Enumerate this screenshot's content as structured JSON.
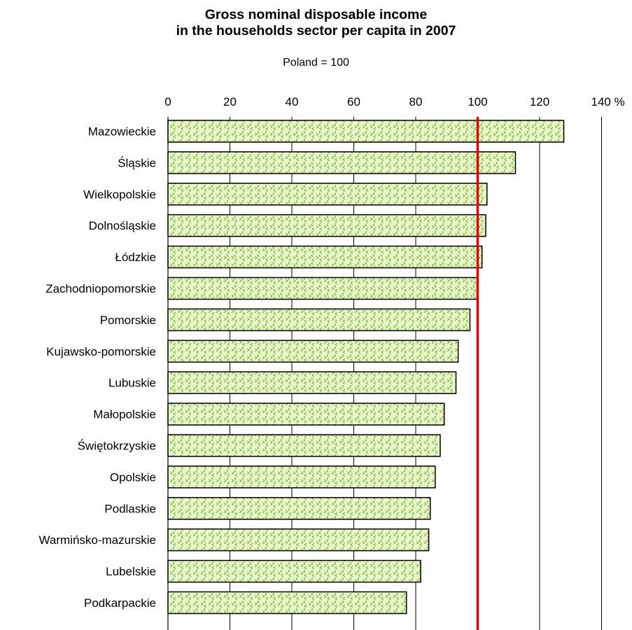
{
  "chart_data": {
    "type": "bar",
    "orientation": "horizontal",
    "title_line1": "Gross nominal disposable income",
    "title_line2": "in the households sector per capita in 2007",
    "subtitle": "Poland = 100",
    "xlim": [
      0,
      140
    ],
    "x_ticks": [
      "0",
      "20",
      "40",
      "60",
      "80",
      "100",
      "120",
      "140 %"
    ],
    "reference_line": {
      "value": 100,
      "color": "#e00000"
    },
    "grid": "vertical",
    "bar_fill": "#e9f7c8",
    "bar_pattern_color": "#72a83a",
    "categories": [
      "Mazowieckie",
      "Śląskie",
      "Wielkopolskie",
      "Dolnośląskie",
      "Łódzkie",
      "Zachodniopomorskie",
      "Pomorskie",
      "Kujawsko-pomorskie",
      "Lubuskie",
      "Małopolskie",
      "Świętokrzyskie",
      "Opolskie",
      "Podlaskie",
      "Warmińsko-mazurskie",
      "Lubelskie",
      "Podkarpackie"
    ],
    "values": [
      127.8,
      112.2,
      103.0,
      102.6,
      101.4,
      99.8,
      97.5,
      93.7,
      93.0,
      89.2,
      87.9,
      86.3,
      84.7,
      84.2,
      81.6,
      77.0
    ]
  }
}
